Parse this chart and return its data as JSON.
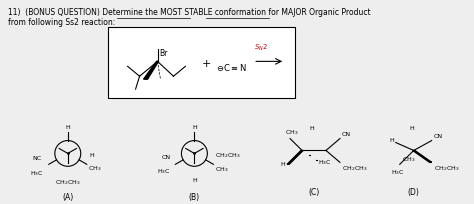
{
  "bg_color": "#eeeeee",
  "sn2_color": "#cc0000",
  "label_A": "(A)",
  "label_B": "(B)",
  "label_C": "(C)",
  "label_D": "(D)",
  "line1_pre": "11)  (BONUS QUESTION) Determine the ",
  "line1_u1": "MOST STABLE conformation",
  "line1_mid": " for ",
  "line1_u2": "MAJOR Organic Product",
  "line2": "from following Ss2 reaction:"
}
